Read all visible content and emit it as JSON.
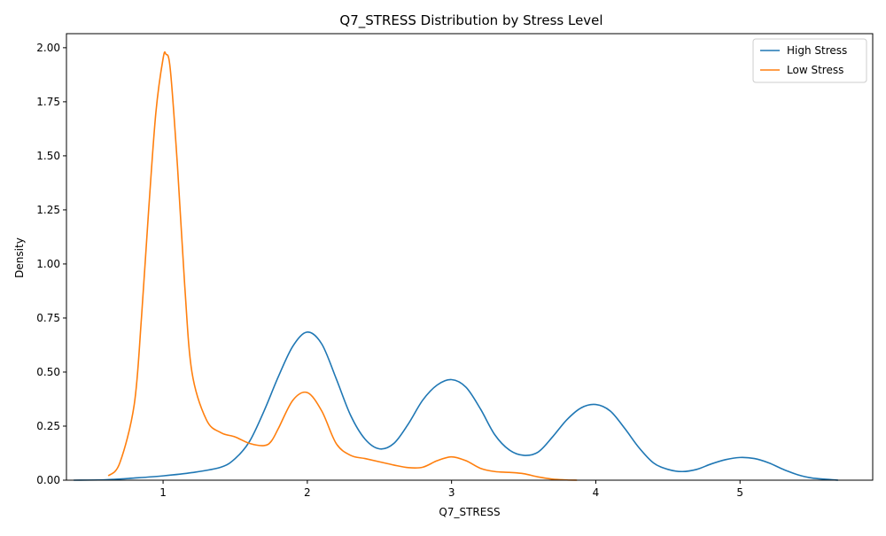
{
  "chart_data": {
    "type": "line",
    "title": "Q7_STRESS Distribution by Stress Level",
    "xlabel": "Q7_STRESS",
    "ylabel": "Density",
    "xlim": [
      0.33,
      5.92
    ],
    "ylim": [
      0,
      2.065
    ],
    "x_ticks": [
      1,
      2,
      3,
      4,
      5
    ],
    "x_tick_labels": [
      "1",
      "2",
      "3",
      "4",
      "5"
    ],
    "y_ticks": [
      0,
      0.25,
      0.5,
      0.75,
      1.0,
      1.25,
      1.5,
      1.75,
      2.0
    ],
    "y_tick_labels": [
      "0.00",
      "0.25",
      "0.50",
      "0.75",
      "1.00",
      "1.25",
      "1.50",
      "1.75",
      "2.00"
    ],
    "grid": false,
    "legend_position": "top-right",
    "series": [
      {
        "name": "High Stress",
        "color": "#1f77b4",
        "x": [
          0.38,
          0.6,
          0.8,
          1.0,
          1.2,
          1.4,
          1.5,
          1.6,
          1.7,
          1.8,
          1.9,
          2.0,
          2.1,
          2.2,
          2.3,
          2.4,
          2.5,
          2.6,
          2.7,
          2.8,
          2.9,
          3.0,
          3.1,
          3.2,
          3.3,
          3.4,
          3.5,
          3.6,
          3.7,
          3.8,
          3.9,
          4.0,
          4.1,
          4.2,
          4.3,
          4.4,
          4.5,
          4.6,
          4.7,
          4.8,
          4.9,
          5.0,
          5.1,
          5.2,
          5.3,
          5.4,
          5.5,
          5.68
        ],
        "y": [
          0.0,
          0.002,
          0.01,
          0.02,
          0.035,
          0.06,
          0.1,
          0.18,
          0.32,
          0.48,
          0.62,
          0.685,
          0.63,
          0.47,
          0.3,
          0.19,
          0.145,
          0.17,
          0.26,
          0.37,
          0.44,
          0.465,
          0.43,
          0.33,
          0.21,
          0.14,
          0.115,
          0.13,
          0.2,
          0.28,
          0.335,
          0.35,
          0.32,
          0.24,
          0.15,
          0.08,
          0.05,
          0.04,
          0.05,
          0.075,
          0.095,
          0.105,
          0.1,
          0.08,
          0.05,
          0.025,
          0.01,
          0.0
        ]
      },
      {
        "name": "Low Stress",
        "color": "#ff7f0e",
        "x": [
          0.62,
          0.7,
          0.8,
          0.85,
          0.9,
          0.95,
          1.0,
          1.02,
          1.05,
          1.1,
          1.15,
          1.2,
          1.3,
          1.4,
          1.5,
          1.6,
          1.7,
          1.75,
          1.8,
          1.9,
          2.0,
          2.1,
          2.2,
          2.3,
          2.4,
          2.5,
          2.6,
          2.7,
          2.8,
          2.9,
          3.0,
          3.1,
          3.2,
          3.3,
          3.4,
          3.5,
          3.6,
          3.7,
          3.8,
          3.87
        ],
        "y": [
          0.02,
          0.08,
          0.35,
          0.75,
          1.25,
          1.7,
          1.95,
          1.97,
          1.9,
          1.45,
          0.9,
          0.5,
          0.28,
          0.22,
          0.2,
          0.17,
          0.16,
          0.18,
          0.24,
          0.37,
          0.405,
          0.32,
          0.17,
          0.115,
          0.1,
          0.085,
          0.07,
          0.058,
          0.06,
          0.09,
          0.108,
          0.09,
          0.055,
          0.04,
          0.036,
          0.03,
          0.015,
          0.005,
          0.001,
          0.0
        ]
      }
    ]
  }
}
